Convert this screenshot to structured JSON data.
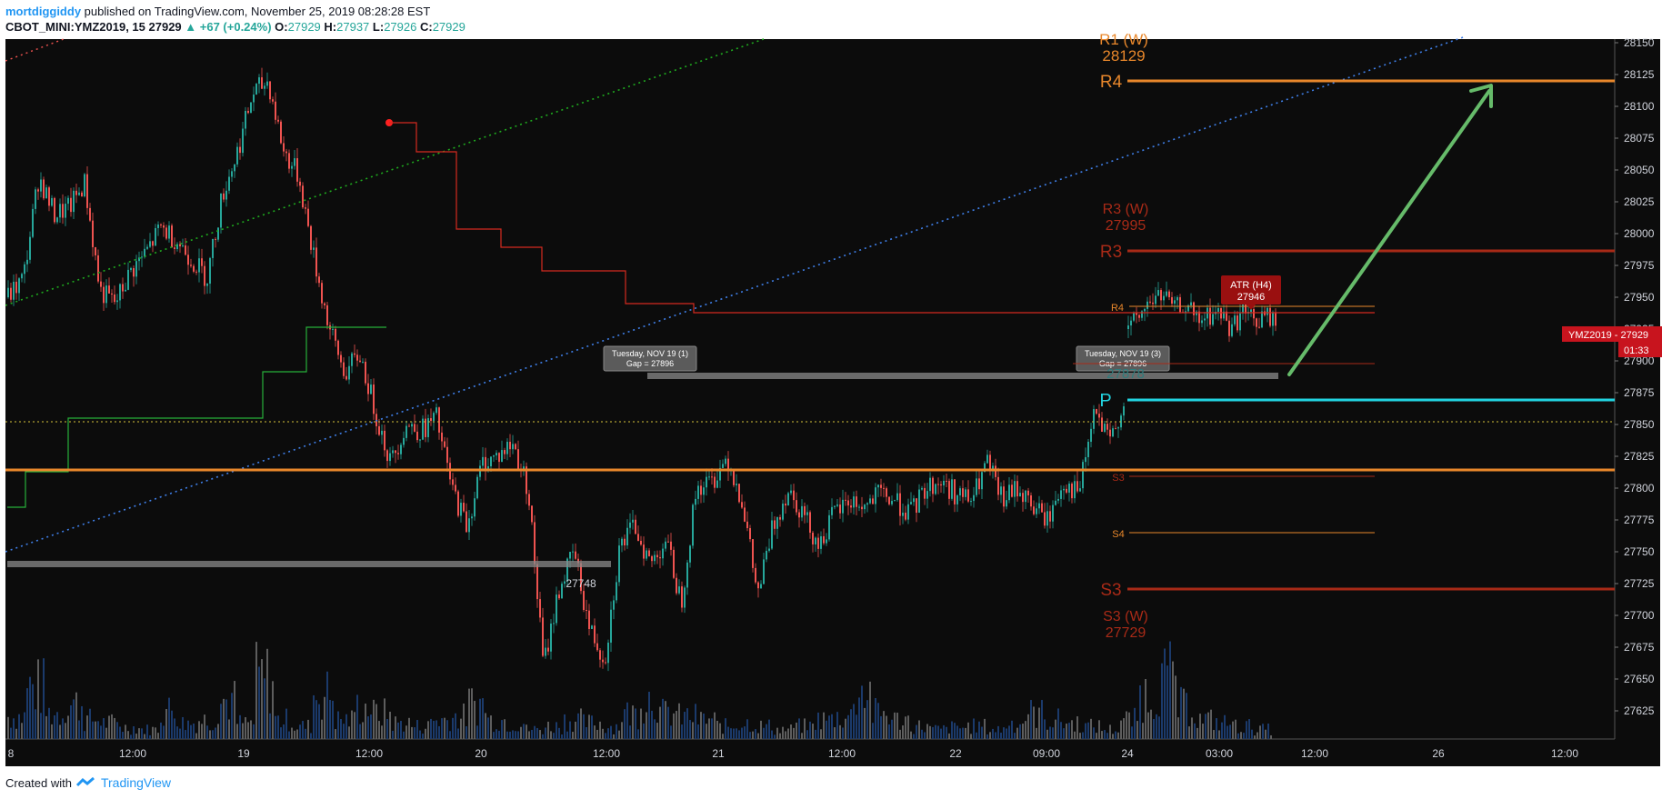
{
  "header": {
    "author": "mortdiggiddy",
    "published": "published on TradingView.com, November 25, 2019 08:28:28 EST",
    "symbol": "CBOT_MINI:YMZ2019, 15",
    "last": "27929",
    "change": "▲ +67 (+0.24%)",
    "o_label": "O:",
    "o": "27929",
    "h_label": "H:",
    "h": "27937",
    "l_label": "L:",
    "l": "27926",
    "c_label": "C:",
    "c": "27929"
  },
  "footer": {
    "created_with": "Created with",
    "brand": "TradingView"
  },
  "colors": {
    "background": "#0c0c0c",
    "up": "#26a69a",
    "down": "#ef5350",
    "orange": "#e8872b",
    "dark_red": "#a82a17",
    "cyan": "#22d3e0",
    "green_arrow": "#66bb6a",
    "blue_dotted": "#3f7fe8",
    "green_dotted": "#1faa1f",
    "red_step": "#d42a1f",
    "green_step": "#27b03a",
    "price_badge": "#c8141e"
  },
  "chart_data": {
    "type": "candlestick",
    "symbol": "YMZ2019",
    "interval": "15",
    "ylim": [
      27605,
      28165
    ],
    "y_ticks": [
      "28150",
      "28125",
      "28100",
      "28075",
      "28050",
      "28025",
      "28000",
      "27975",
      "27950",
      "27925",
      "27900",
      "27875",
      "27850",
      "27825",
      "27800",
      "27775",
      "27750",
      "27725",
      "27700",
      "27675",
      "27650",
      "27625"
    ],
    "x_ticks": [
      "8",
      "12:00",
      "19",
      "12:00",
      "20",
      "12:00",
      "21",
      "12:00",
      "22",
      "09:00",
      "24",
      "03:00",
      "12:00",
      "26",
      "12:00"
    ],
    "close_path": [
      27950,
      27965,
      28045,
      28015,
      28020,
      28040,
      27955,
      27945,
      27970,
      27985,
      28005,
      27995,
      27980,
      27965,
      28030,
      28065,
      28110,
      28120,
      28065,
      28045,
      27980,
      27925,
      27890,
      27905,
      27860,
      27820,
      27850,
      27845,
      27855,
      27800,
      27770,
      27820,
      27825,
      27835,
      27800,
      27660,
      27720,
      27750,
      27690,
      27665,
      27755,
      27770,
      27740,
      27760,
      27710,
      27800,
      27805,
      27825,
      27790,
      27715,
      27770,
      27800,
      27780,
      27755,
      27780,
      27790,
      27785,
      27795,
      27790,
      27780,
      27800,
      27805,
      27795,
      27790,
      27820,
      27790,
      27800,
      27785,
      27775,
      27805,
      27795,
      27860,
      27835,
      27870
    ],
    "close_path_2": [
      27925,
      27935,
      27948,
      27952,
      27940,
      27945,
      27930,
      27935,
      27938,
      27925,
      27940,
      27930,
      27935,
      27929
    ],
    "levels": [
      {
        "label": "R1 (W)",
        "value_label": "28129",
        "value": 28129
      },
      {
        "label": "R4",
        "value": 28129
      },
      {
        "label": "R3 (W)",
        "value_label": "27995",
        "value": 27995
      },
      {
        "label": "R3",
        "value": 27995
      },
      {
        "label": "R4",
        "value": 27952
      },
      {
        "label": "P",
        "value": 27878
      },
      {
        "label": "S3",
        "value": 27819
      },
      {
        "label": "S4",
        "value": 27772
      },
      {
        "label": "S3",
        "value": 27729
      },
      {
        "label": "S3 (W)",
        "value_label": "27729",
        "value": 27729
      },
      {
        "label": "27878",
        "value": 27908
      },
      {
        "label": "27748",
        "value": 27748
      }
    ],
    "gaps": [
      {
        "label": "Tuesday, NOV 19 (1)",
        "sub": "Gap = 27896",
        "value": 27896
      },
      {
        "label": "Tuesday, NOV 19 (3)",
        "sub": "Gap = 27896",
        "value": 27896
      }
    ],
    "atr": {
      "label": "ATR (H4)",
      "value": "27946"
    },
    "price_badge": {
      "symbol": "YMZ2019",
      "separator": "-",
      "value": "27929",
      "timer": "01:33"
    },
    "volume_profile": [
      35,
      80,
      40,
      55,
      30,
      25,
      18,
      15,
      45,
      25,
      30,
      60,
      25,
      95,
      30,
      20,
      70,
      30,
      50,
      40,
      25,
      20,
      30,
      35,
      55,
      30,
      25,
      15,
      20,
      30,
      25,
      20,
      40,
      65,
      40,
      35,
      30,
      20,
      25,
      20,
      15,
      20,
      30,
      35,
      75,
      40,
      30,
      20,
      15,
      18,
      20,
      15,
      25,
      40,
      30,
      25,
      20,
      15,
      30,
      70,
      95,
      50,
      30,
      25,
      20,
      15
    ]
  }
}
